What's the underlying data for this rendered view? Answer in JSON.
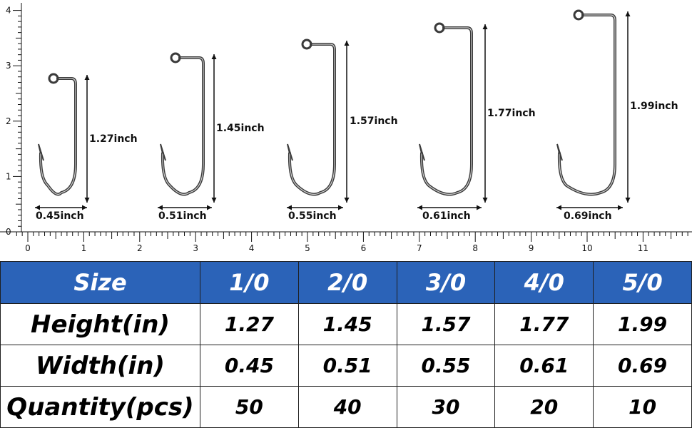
{
  "ruler": {
    "x_labels": [
      "0",
      "1",
      "2",
      "3",
      "4",
      "5",
      "6",
      "7",
      "8",
      "9",
      "10",
      "11"
    ],
    "y_labels": [
      "0",
      "1",
      "2",
      "3",
      "4"
    ]
  },
  "hooks": [
    {
      "size": "1/0",
      "height_label": "1.27inch",
      "width_label": "0.45inch",
      "height_in": 1.27,
      "width_in": 0.45
    },
    {
      "size": "2/0",
      "height_label": "1.45inch",
      "width_label": "0.51inch",
      "height_in": 1.45,
      "width_in": 0.51
    },
    {
      "size": "3/0",
      "height_label": "1.57inch",
      "width_label": "0.55inch",
      "height_in": 1.57,
      "width_in": 0.55
    },
    {
      "size": "4/0",
      "height_label": "1.77inch",
      "width_label": "0.61inch",
      "height_in": 1.77,
      "width_in": 0.61
    },
    {
      "size": "5/0",
      "height_label": "1.99inch",
      "width_label": "0.69inch",
      "height_in": 1.99,
      "width_in": 0.69
    }
  ],
  "table": {
    "header": [
      "Size",
      "1/0",
      "2/0",
      "3/0",
      "4/0",
      "5/0"
    ],
    "rows": [
      [
        "Height(in)",
        "1.27",
        "1.45",
        "1.57",
        "1.77",
        "1.99"
      ],
      [
        "Width(in)",
        "0.45",
        "0.51",
        "0.55",
        "0.61",
        "0.69"
      ],
      [
        "Quantity(pcs)",
        "50",
        "40",
        "30",
        "20",
        "10"
      ]
    ]
  },
  "colors": {
    "header_bg": "#2b63b8",
    "header_text": "#ffffff",
    "hook_wire": "#3a3a3a",
    "ink": "#111111"
  }
}
